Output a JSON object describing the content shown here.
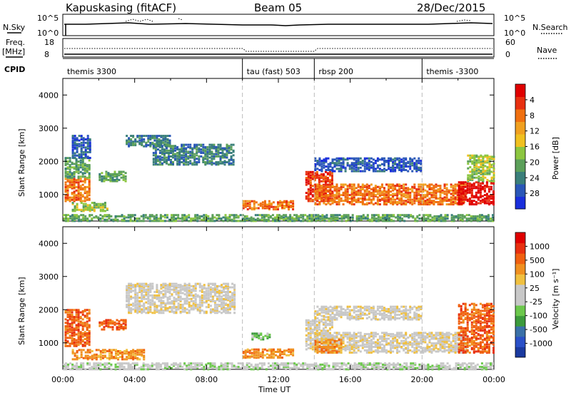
{
  "header": {
    "station": "Kapuskasing (fitACF)",
    "beam": "Beam 05",
    "date": "28/Dec/2015"
  },
  "top_panels": {
    "nsky_label": "N.Sky",
    "nsearch_label": "N.Search",
    "nsky_ticks": [
      "10^5",
      "10^0"
    ],
    "freq_label_1": "Freq.",
    "freq_label_2": "[MHz]",
    "freq_ticks": [
      "18",
      "8"
    ],
    "nave_label": "Nave",
    "nave_ticks": [
      "60",
      "0"
    ],
    "cpid_label": "CPID",
    "cpid_segments": [
      {
        "label": "themis 3300",
        "start_hour": 0
      },
      {
        "label": "tau (fast) 503",
        "start_hour": 10
      },
      {
        "label": "rbsp 200",
        "start_hour": 14
      },
      {
        "label": "themis -3300",
        "start_hour": 20
      }
    ]
  },
  "chart_data": [
    {
      "type": "heatmap",
      "name": "power",
      "ylabel": "Slant Range [km]",
      "yticks": [
        "1000",
        "2000",
        "3000",
        "4000"
      ],
      "ylim": [
        200,
        4500
      ],
      "xlim": [
        0,
        24
      ],
      "colorbar": {
        "label": "Power [dB]",
        "ticks": [
          "4",
          "8",
          "12",
          "16",
          "20",
          "24",
          "28"
        ],
        "colors": [
          "#1a2fdc",
          "#2a57b8",
          "#3a7f7a",
          "#5ca05a",
          "#8cc640",
          "#f0c020",
          "#f0a020",
          "#f07010",
          "#e83010",
          "#e00000"
        ]
      },
      "regions": [
        {
          "t0": 0.1,
          "t1": 1.5,
          "r0": 800,
          "r1": 1500,
          "level": 7
        },
        {
          "t0": 0.1,
          "t1": 1.5,
          "r0": 1500,
          "r1": 2100,
          "level": 3
        },
        {
          "t0": 0.5,
          "t1": 1.5,
          "r0": 2100,
          "r1": 2800,
          "level": 1
        },
        {
          "t0": 3.5,
          "t1": 6.0,
          "r0": 2450,
          "r1": 2800,
          "level": 2
        },
        {
          "t0": 5.0,
          "t1": 9.5,
          "r0": 1900,
          "r1": 2500,
          "level": 2
        },
        {
          "t0": 2.0,
          "t1": 3.5,
          "r0": 1400,
          "r1": 1700,
          "level": 3
        },
        {
          "t0": 0.5,
          "t1": 2.5,
          "r0": 500,
          "r1": 750,
          "level": 4
        },
        {
          "t0": 10.0,
          "t1": 12.8,
          "r0": 550,
          "r1": 800,
          "level": 7
        },
        {
          "t0": 13.5,
          "t1": 15.0,
          "r0": 800,
          "r1": 1700,
          "level": 8
        },
        {
          "t0": 14.0,
          "t1": 22.5,
          "r0": 700,
          "r1": 1300,
          "level": 7
        },
        {
          "t0": 22.0,
          "t1": 24.0,
          "r0": 700,
          "r1": 1400,
          "level": 9
        },
        {
          "t0": 22.5,
          "t1": 24.0,
          "r0": 1400,
          "r1": 2200,
          "level": 4
        },
        {
          "t0": 14.0,
          "t1": 20.0,
          "r0": 1700,
          "r1": 2100,
          "level": 1
        },
        {
          "t0": 0.0,
          "t1": 24.0,
          "r0": 200,
          "r1": 400,
          "level": 3
        }
      ]
    },
    {
      "type": "heatmap",
      "name": "velocity",
      "ylabel": "Slant Range [km]",
      "yticks": [
        "1000",
        "2000",
        "3000",
        "4000"
      ],
      "ylim": [
        200,
        4500
      ],
      "xlim": [
        0,
        24
      ],
      "xlabel": "Time UT",
      "xticks": [
        "00:00",
        "04:00",
        "08:00",
        "12:00",
        "16:00",
        "20:00",
        "00:00"
      ],
      "colorbar": {
        "label": "Velocity [m s⁻¹]",
        "ticks": [
          "1000",
          "500",
          "100",
          "25",
          "-25",
          "-100",
          "-500",
          "-1000"
        ],
        "colors": [
          "#1a3aa0",
          "#2a50c8",
          "#3a70a8",
          "#3c9a3c",
          "#6cc84c",
          "#c8c8c8",
          "#c8c8c8",
          "#f0c040",
          "#f09020",
          "#f06010",
          "#e83010",
          "#e00000"
        ]
      },
      "regions": [
        {
          "t0": 0.1,
          "t1": 1.5,
          "r0": 900,
          "r1": 2000,
          "level": 9
        },
        {
          "t0": 2.0,
          "t1": 3.5,
          "r0": 1400,
          "r1": 1700,
          "level": 9
        },
        {
          "t0": 3.5,
          "t1": 9.5,
          "r0": 1900,
          "r1": 2800,
          "level": 6
        },
        {
          "t0": 0.5,
          "t1": 4.5,
          "r0": 500,
          "r1": 800,
          "level": 8
        },
        {
          "t0": 10.0,
          "t1": 12.8,
          "r0": 550,
          "r1": 800,
          "level": 8
        },
        {
          "t0": 10.5,
          "t1": 11.5,
          "r0": 1100,
          "r1": 1300,
          "level": 4
        },
        {
          "t0": 13.5,
          "t1": 15.0,
          "r0": 800,
          "r1": 1700,
          "level": 6
        },
        {
          "t0": 14.0,
          "t1": 22.5,
          "r0": 700,
          "r1": 1300,
          "level": 6
        },
        {
          "t0": 14.0,
          "t1": 15.5,
          "r0": 700,
          "r1": 1100,
          "level": 8
        },
        {
          "t0": 22.0,
          "t1": 24.0,
          "r0": 700,
          "r1": 2200,
          "level": 9
        },
        {
          "t0": 14.0,
          "t1": 20.0,
          "r0": 1700,
          "r1": 2100,
          "level": 6
        },
        {
          "t0": 0.0,
          "t1": 24.0,
          "r0": 200,
          "r1": 400,
          "level": 5
        }
      ]
    }
  ]
}
